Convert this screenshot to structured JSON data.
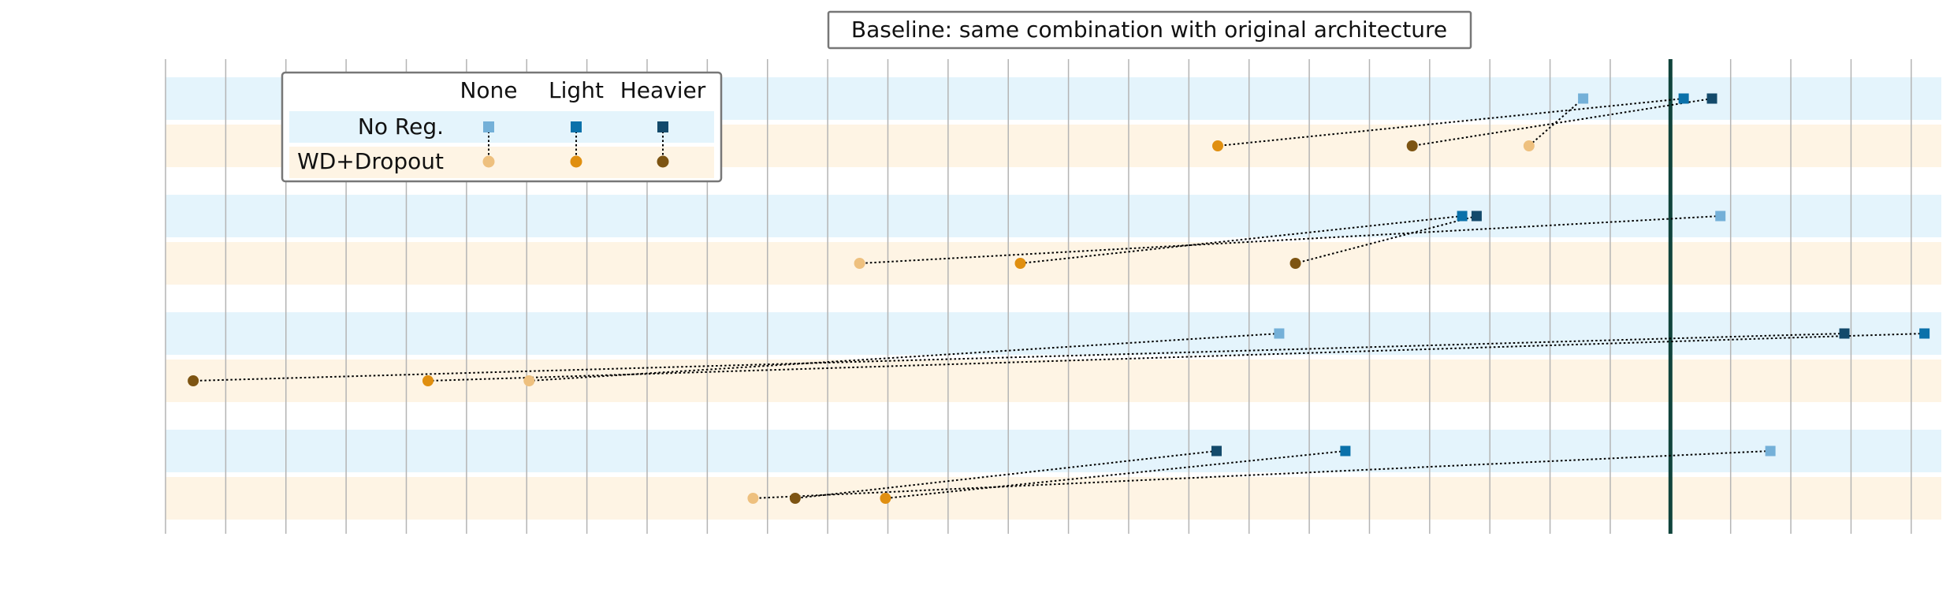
{
  "chart_data": {
    "type": "scatter",
    "title": "Baseline: same combination with original architecture",
    "xlim": [
      0,
      29.5
    ],
    "grid": true,
    "baseline_x": 25,
    "legend": {
      "position": "top-left",
      "columns": [
        "None",
        "Light",
        "Heavier"
      ],
      "rows": [
        "No Reg.",
        "WD+Dropout"
      ]
    },
    "colors": {
      "noreg": [
        "#74b0d8",
        "#0a71aa",
        "#134a6b"
      ],
      "wd": [
        "#eec07e",
        "#e08f10",
        "#7d5412"
      ],
      "band_noreg": "#e4f4fc",
      "band_wd": "#fef4e4",
      "baseline": "#10443c"
    },
    "groups": [
      {
        "noreg": [
          23.55,
          25.22,
          25.69
        ],
        "wd": [
          22.65,
          17.48,
          20.71
        ]
      },
      {
        "noreg": [
          25.83,
          21.54,
          21.78
        ],
        "wd": [
          11.53,
          14.2,
          18.77
        ]
      },
      {
        "noreg": [
          18.5,
          29.22,
          27.89
        ],
        "wd": [
          6.04,
          4.36,
          0.46
        ]
      },
      {
        "noreg": [
          26.66,
          19.6,
          17.46
        ],
        "wd": [
          9.76,
          11.96,
          10.46
        ]
      }
    ]
  }
}
